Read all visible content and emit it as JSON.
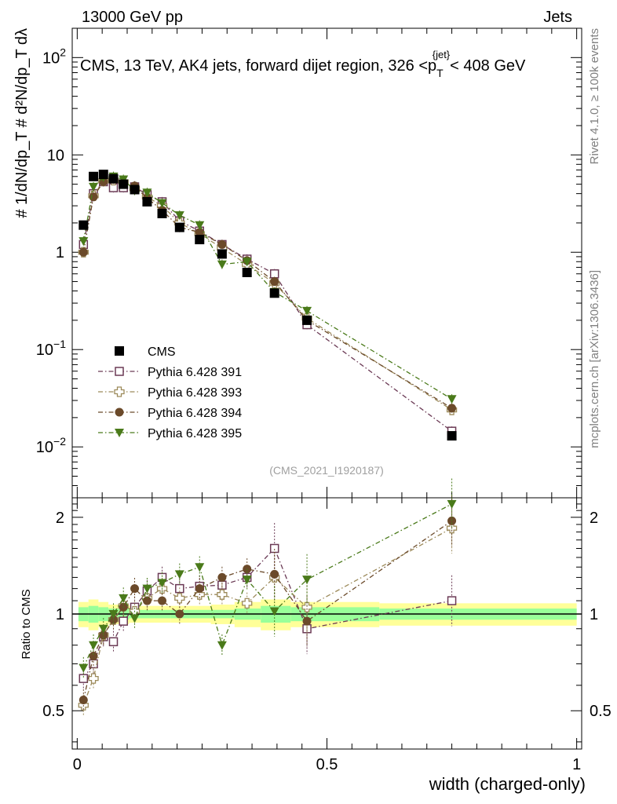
{
  "header": {
    "left": "13000 GeV pp",
    "right": "Jets",
    "ref": "(CMS_2021_I1920187)",
    "side_top": "Rivet 4.1.0, ≥ 100k events",
    "side_bottom": "mcplots.cern.ch [arXiv:1306.3436]"
  },
  "chart_data": {
    "type": "line",
    "title": "CMS, 13 TeV, AK4 jets, forward dijet region, 326 <p",
    "title_sub": "T",
    "title_sup": "{jet}",
    "title_end": "< 408 GeV",
    "xlabel": "width (charged-only)",
    "ylabel_main": "# 1/dN/dp_T # d²N/dp_T dλ",
    "ylabel_ratio": "Ratio to CMS",
    "xlim": [
      -0.01,
      1.01
    ],
    "ylim_main": [
      0.003,
      200
    ],
    "ylim_ratio": [
      0.38,
      2.3
    ],
    "x_ticks": [
      "0",
      "0.5",
      "1"
    ],
    "y_ticks_main": [
      "10",
      "1"
    ],
    "y_ticks_ratio": [
      "2",
      "1",
      "0.5"
    ],
    "x": [
      0.0125,
      0.0325,
      0.0525,
      0.0725,
      0.0925,
      0.115,
      0.14,
      0.17,
      0.205,
      0.245,
      0.29,
      0.34,
      0.395,
      0.46,
      0.75
    ],
    "legend": [
      "CMS",
      "Pythia 6.428 391",
      "Pythia 6.428 393",
      "Pythia 6.428 394",
      "Pythia 6.428 395"
    ],
    "data": {
      "name": "CMS",
      "values": [
        1.9,
        6.0,
        6.3,
        5.7,
        5.0,
        4.4,
        3.3,
        2.5,
        1.8,
        1.35,
        0.96,
        0.62,
        0.38,
        0.2,
        0.013
      ],
      "band_inner": [
        0.05,
        0.06,
        0.05,
        0.04,
        0.04,
        0.03,
        0.03,
        0.03,
        0.03,
        0.03,
        0.03,
        0.04,
        0.06,
        0.05,
        0.04
      ],
      "band_outer": [
        0.09,
        0.11,
        0.09,
        0.07,
        0.07,
        0.06,
        0.06,
        0.06,
        0.06,
        0.06,
        0.07,
        0.09,
        0.11,
        0.09,
        0.08
      ]
    },
    "series": [
      {
        "name": "Pythia 6.428 391",
        "color": "#6b3a55",
        "marker": "open-square",
        "values": [
          1.2,
          4.0,
          5.3,
          4.6,
          4.6,
          4.7,
          3.9,
          3.3,
          2.1,
          1.65,
          1.2,
          0.85,
          0.6,
          0.18,
          0.0145
        ],
        "ratio": [
          0.63,
          0.7,
          0.85,
          0.82,
          0.95,
          1.05,
          1.18,
          1.3,
          1.2,
          1.22,
          1.23,
          1.3,
          1.6,
          0.9,
          1.1
        ]
      },
      {
        "name": "Pythia 6.428 393",
        "color": "#9c8a5a",
        "marker": "open-cross",
        "values": [
          1.0,
          3.8,
          5.4,
          5.5,
          5.3,
          4.5,
          3.7,
          3.0,
          2.0,
          1.55,
          1.1,
          0.75,
          0.48,
          0.21,
          0.024
        ],
        "ratio": [
          0.52,
          0.63,
          0.86,
          0.96,
          1.06,
          1.02,
          1.12,
          1.2,
          1.12,
          1.15,
          1.15,
          1.08,
          1.3,
          1.05,
          1.85
        ]
      },
      {
        "name": "Pythia 6.428 394",
        "color": "#6b4a2a",
        "marker": "filled-circle",
        "values": [
          1.0,
          3.7,
          5.3,
          5.6,
          5.2,
          4.8,
          3.6,
          2.7,
          1.8,
          1.6,
          1.2,
          0.82,
          0.5,
          0.2,
          0.025
        ],
        "ratio": [
          0.54,
          0.74,
          0.86,
          0.96,
          1.05,
          1.2,
          1.1,
          1.1,
          1.0,
          1.2,
          1.3,
          1.38,
          1.33,
          0.95,
          1.95
        ]
      },
      {
        "name": "Pythia 6.428 395",
        "color": "#4a7a1a",
        "marker": "filled-triangle-down",
        "values": [
          1.3,
          4.7,
          5.9,
          6.0,
          5.6,
          4.3,
          4.1,
          3.2,
          2.4,
          1.9,
          0.75,
          0.8,
          0.39,
          0.25,
          0.031
        ],
        "ratio": [
          0.68,
          0.8,
          0.9,
          1.0,
          1.12,
          0.97,
          1.2,
          1.25,
          1.33,
          1.4,
          0.8,
          1.28,
          1.02,
          1.28,
          2.2
        ]
      }
    ]
  }
}
